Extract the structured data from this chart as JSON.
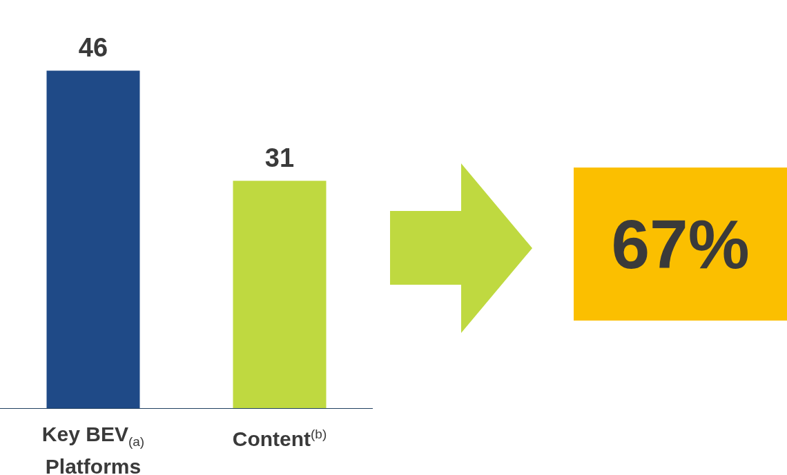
{
  "chart_data": {
    "type": "bar",
    "categories": [
      "Key BEV$_{(a)}$ Platforms",
      "Content$^{(b)}$"
    ],
    "values": [
      46,
      31
    ],
    "colors": [
      "#1f4a87",
      "#bfd940"
    ],
    "data_labels": true,
    "annotations": [
      "67%"
    ]
  }
}
